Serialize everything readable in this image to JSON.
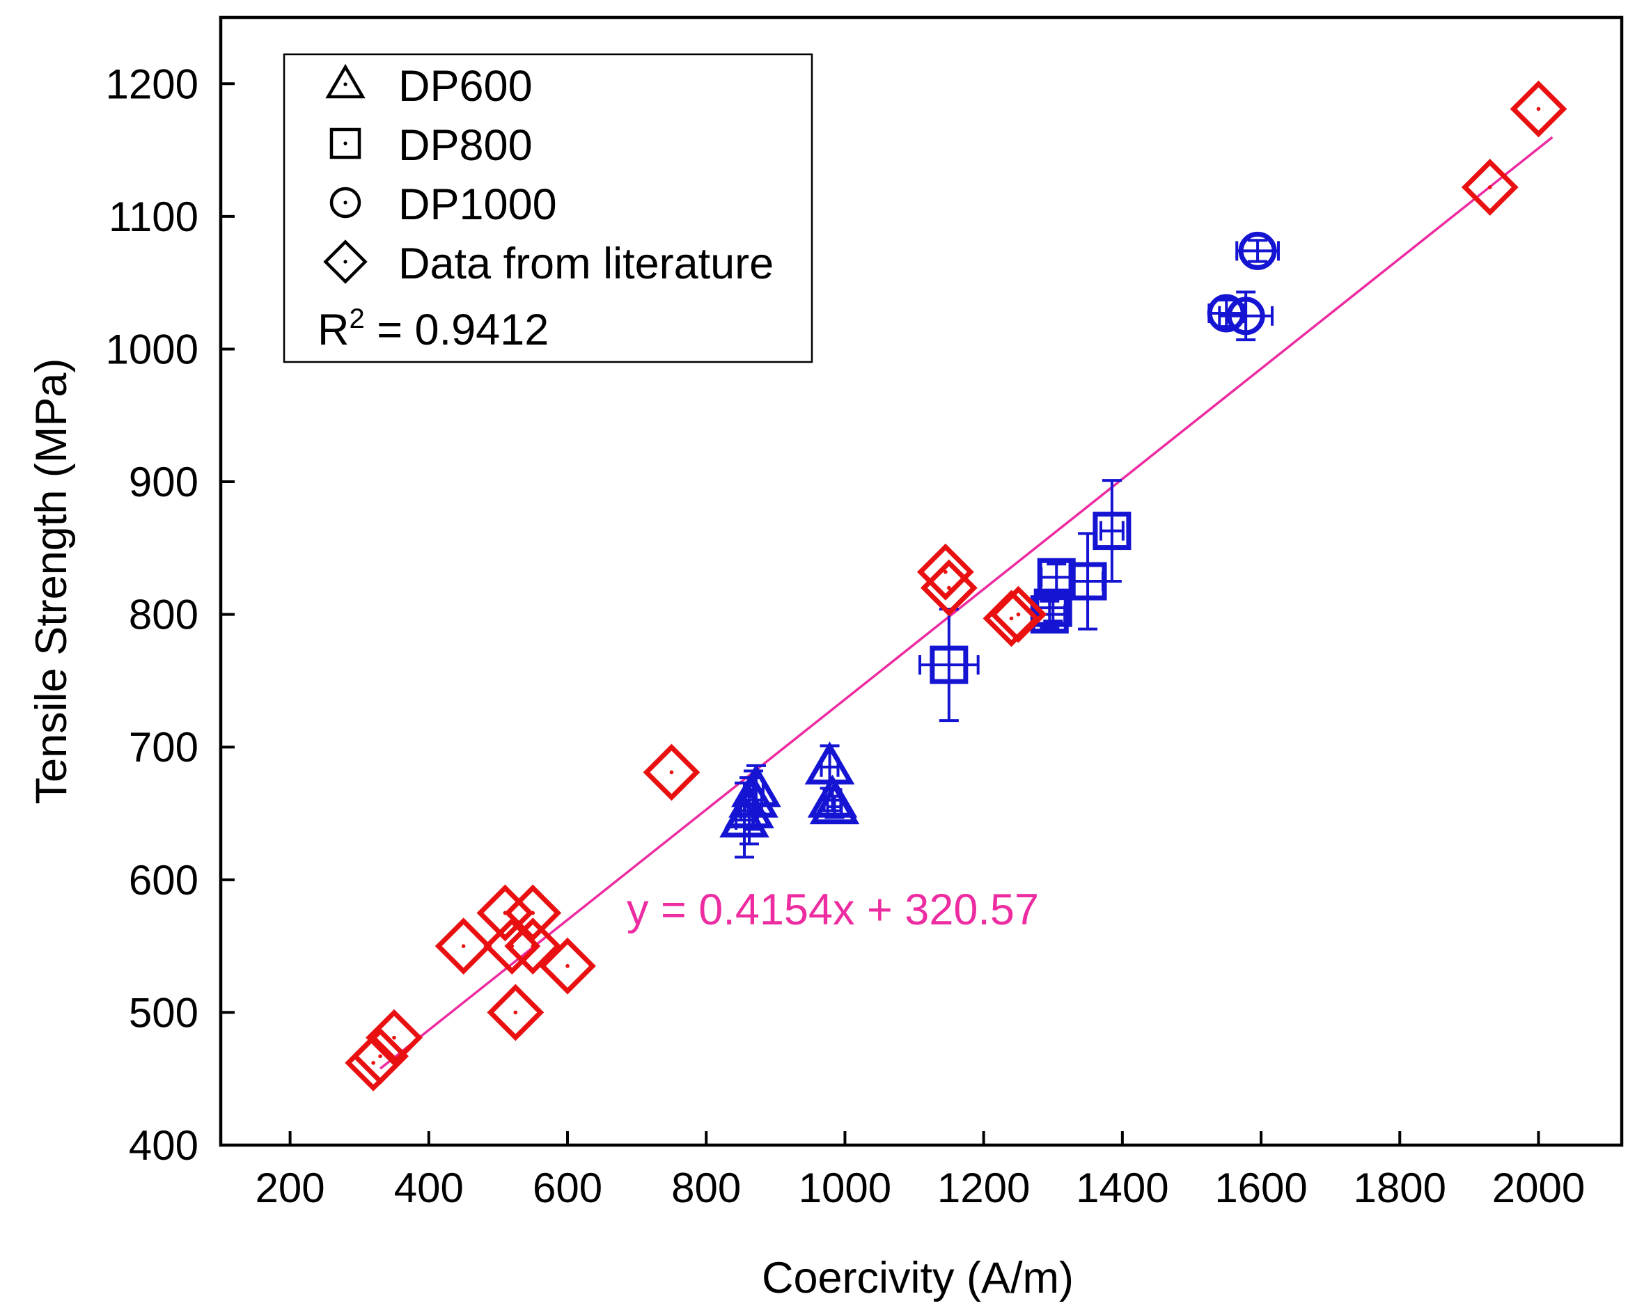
{
  "chart_data": {
    "type": "scatter",
    "xlabel": "Coercivity (A/m)",
    "ylabel": "Tensile Strength (MPa)",
    "xlim": [
      100,
      2120
    ],
    "ylim": [
      400,
      1250
    ],
    "xticks": [
      200,
      400,
      600,
      800,
      1000,
      1200,
      1400,
      1600,
      1800,
      2000
    ],
    "yticks": [
      400,
      500,
      600,
      700,
      800,
      900,
      1000,
      1100,
      1200
    ],
    "grid": false,
    "legend": {
      "placement": "top-left",
      "entries": [
        {
          "label": "DP600",
          "marker": "triangle"
        },
        {
          "label": "DP800",
          "marker": "square"
        },
        {
          "label": "DP1000",
          "marker": "circle"
        },
        {
          "label": "Data from literature",
          "marker": "diamond"
        }
      ],
      "r2_prefix": "R",
      "r2_sup": "2",
      "r2_value": " = 0.9412"
    },
    "colors": {
      "measured": "#1414d2",
      "literature": "#e81010",
      "fit": "#ec2ca0"
    },
    "fit": {
      "equation": "y = 0.4154x + 320.57",
      "slope": 0.4154,
      "intercept": 320.57,
      "x_range": [
        330,
        2020
      ]
    },
    "series": [
      {
        "name": "DP600",
        "marker": "triangle",
        "points": [
          {
            "x": 855,
            "y": 645,
            "xerr": 12,
            "yerr": 28
          },
          {
            "x": 862,
            "y": 652,
            "xerr": 12,
            "yerr": 25
          },
          {
            "x": 868,
            "y": 660,
            "xerr": 12,
            "yerr": 22
          },
          {
            "x": 872,
            "y": 668,
            "xerr": 10,
            "yerr": 18
          },
          {
            "x": 978,
            "y": 685,
            "xerr": 12,
            "yerr": 16
          },
          {
            "x": 982,
            "y": 660,
            "xerr": 12,
            "yerr": 8
          },
          {
            "x": 985,
            "y": 655,
            "xerr": 10,
            "yerr": 8
          }
        ]
      },
      {
        "name": "DP800",
        "marker": "square",
        "points": [
          {
            "x": 1150,
            "y": 762,
            "xerr": 42,
            "yerr": 42
          },
          {
            "x": 1295,
            "y": 800,
            "xerr": 22,
            "yerr": 10
          },
          {
            "x": 1300,
            "y": 805,
            "xerr": 22,
            "yerr": 10
          },
          {
            "x": 1305,
            "y": 828,
            "xerr": 22,
            "yerr": 10
          },
          {
            "x": 1350,
            "y": 825,
            "xerr": 22,
            "yerr": 36
          },
          {
            "x": 1385,
            "y": 863,
            "xerr": 16,
            "yerr": 38
          }
        ]
      },
      {
        "name": "DP1000",
        "marker": "circle",
        "points": [
          {
            "x": 1550,
            "y": 1027,
            "xerr": 25,
            "yerr": 10
          },
          {
            "x": 1578,
            "y": 1025,
            "xerr": 38,
            "yerr": 18
          },
          {
            "x": 1595,
            "y": 1074,
            "xerr": 30,
            "yerr": 8
          }
        ]
      },
      {
        "name": "Data from literature",
        "marker": "diamond",
        "points": [
          {
            "x": 320,
            "y": 462
          },
          {
            "x": 330,
            "y": 467
          },
          {
            "x": 350,
            "y": 481
          },
          {
            "x": 450,
            "y": 550
          },
          {
            "x": 510,
            "y": 575
          },
          {
            "x": 520,
            "y": 550
          },
          {
            "x": 525,
            "y": 500
          },
          {
            "x": 550,
            "y": 575
          },
          {
            "x": 550,
            "y": 550
          },
          {
            "x": 600,
            "y": 535
          },
          {
            "x": 750,
            "y": 681
          },
          {
            "x": 1145,
            "y": 832
          },
          {
            "x": 1150,
            "y": 820
          },
          {
            "x": 1240,
            "y": 797
          },
          {
            "x": 1250,
            "y": 800
          },
          {
            "x": 1930,
            "y": 1122
          },
          {
            "x": 2000,
            "y": 1181
          }
        ]
      }
    ]
  }
}
